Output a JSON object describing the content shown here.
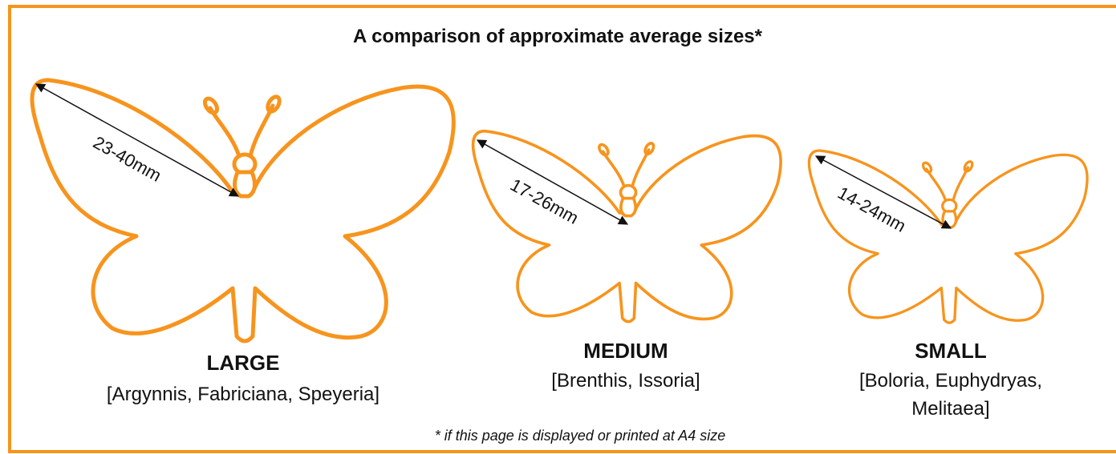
{
  "title": "A comparison of approximate average sizes*",
  "butterflies": [
    {
      "size": "LARGE",
      "genera": "[Argynnis, Fabriciana, Speyeria]",
      "wingspan": "23-40mm"
    },
    {
      "size": "MEDIUM",
      "genera": "[Brenthis, Issoria]",
      "wingspan": "17-26mm"
    },
    {
      "size": "SMALL",
      "genera": "[Boloria, Euphydryas, Melitaea]",
      "wingspan": "14-24mm"
    }
  ],
  "footnote": "* if this page is displayed or printed at A4 size"
}
